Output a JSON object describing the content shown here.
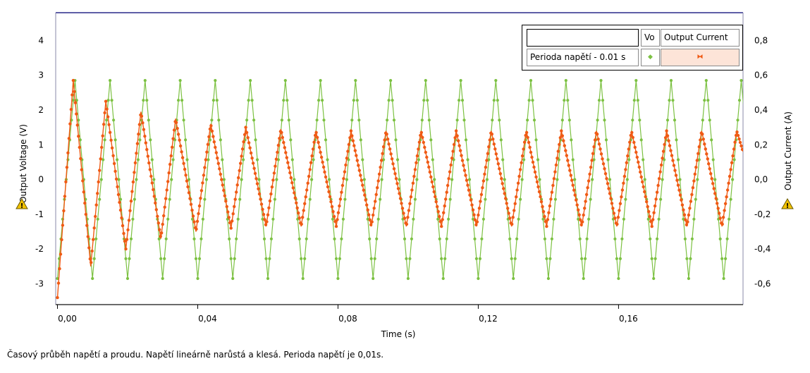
{
  "chart_data": {
    "type": "line",
    "xlabel": "Time (s)",
    "ylabel_left": "Output Voltage (V)",
    "ylabel_right": "Output Current (A)",
    "xlim": [
      -0.0005,
      0.1955
    ],
    "ylim_left": [
      -3.6,
      4.8
    ],
    "ylim_right": [
      -0.72,
      0.96
    ],
    "x_ticks": [
      "0,00",
      "0,04",
      "0,08",
      "0,12",
      "0,16"
    ],
    "y_left_ticks": [
      "4",
      "3",
      "2",
      "1",
      "0",
      "-1",
      "-2",
      "-3"
    ],
    "y_right_ticks": [
      "0,8",
      "0,6",
      "0,4",
      "0,2",
      "0,0",
      "-0,2",
      "-0,4",
      "-0,6"
    ],
    "grid": true,
    "legend_placement": "top-right",
    "series": [
      {
        "name": "Vo",
        "color": "#7cc142",
        "axis": "left",
        "period": 0.01,
        "peak_times": [
          0.005,
          0.015,
          0.025,
          0.035,
          0.045,
          0.055,
          0.065,
          0.075,
          0.085,
          0.095,
          0.105,
          0.115,
          0.125,
          0.135,
          0.145,
          0.155,
          0.165,
          0.175,
          0.185,
          0.195
        ],
        "peak_value": 2.85,
        "trough_value": -2.85,
        "start_value": -2.85
      },
      {
        "name": "Output Current",
        "color": "#f05a14",
        "axis": "right",
        "peak_times": [
          0.0045,
          0.0138,
          0.0238,
          0.0337,
          0.0437,
          0.0537,
          0.0637,
          0.0737,
          0.0837,
          0.0937,
          0.1037,
          0.1137,
          0.1237,
          0.1337,
          0.1437,
          0.1537,
          0.1637,
          0.1737,
          0.1837,
          0.1937
        ],
        "peak_values": [
          0.57,
          0.45,
          0.39,
          0.35,
          0.32,
          0.3,
          0.29,
          0.28,
          0.28,
          0.28,
          0.28,
          0.28,
          0.28,
          0.28,
          0.28,
          0.28,
          0.28,
          0.28,
          0.28,
          0.28
        ],
        "trough_times": [
          0.0095,
          0.0195,
          0.0295,
          0.0395,
          0.0495,
          0.0595,
          0.0695,
          0.0795,
          0.0895,
          0.0995,
          0.1095,
          0.1195,
          0.1295,
          0.1395,
          0.1495,
          0.1595,
          0.1695,
          0.1795,
          0.1895
        ],
        "trough_values": [
          -0.5,
          -0.4,
          -0.34,
          -0.3,
          -0.28,
          -0.27,
          -0.27,
          -0.27,
          -0.27,
          -0.27,
          -0.27,
          -0.27,
          -0.27,
          -0.27,
          -0.27,
          -0.27,
          -0.27,
          -0.27,
          -0.27
        ],
        "start_value": -0.68,
        "end_value": 0.16
      }
    ]
  },
  "legend": {
    "header_blank": "",
    "header_col1": "Vo",
    "header_col2": "Output Current",
    "row_label": "Perioda napětí - 0.01 s",
    "vo_marker": "◆",
    "current_marker": "⧓"
  },
  "warning_icon_glyph": "!",
  "caption": "Časový průběh napětí a proudu. Napětí lineárně narůstá a klesá. Perioda napětí je 0,01s."
}
